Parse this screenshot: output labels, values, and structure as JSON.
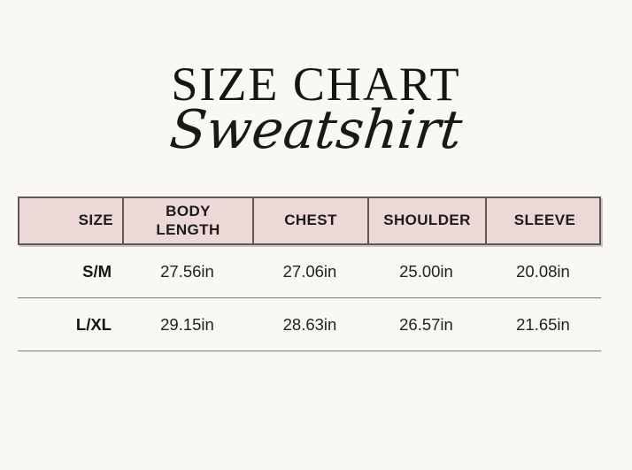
{
  "chart_data": {
    "type": "table",
    "title": "SIZE CHART",
    "subtitle": "Sweatshirt",
    "columns": [
      "SIZE",
      "BODY LENGTH",
      "CHEST",
      "SHOULDER",
      "SLEEVE"
    ],
    "rows": [
      [
        "S/M",
        "27.56in",
        "27.06in",
        "25.00in",
        "20.08in"
      ],
      [
        "L/XL",
        "29.15in",
        "28.63in",
        "26.57in",
        "21.65in"
      ]
    ]
  },
  "colors": {
    "background": "#faf8f5",
    "header_bg": "#ecd8d6",
    "table_border": "#5e5755",
    "row_divider": "#7e7a78",
    "text": "#1d1b1b"
  }
}
